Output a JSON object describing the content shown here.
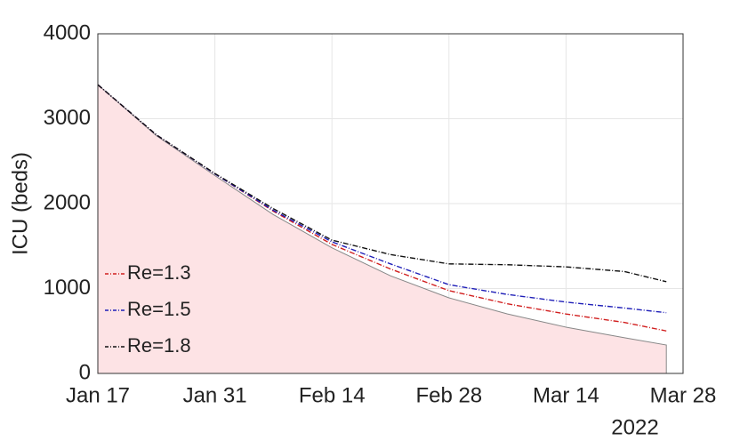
{
  "chart_data": {
    "type": "line",
    "y_label": "ICU (beds)",
    "x_year_label": "2022",
    "xlim": [
      "2022-01-17",
      "2022-03-28"
    ],
    "xticks": [
      {
        "value": "2022-01-17",
        "label": "Jan 17"
      },
      {
        "value": "2022-01-31",
        "label": "Jan 31"
      },
      {
        "value": "2022-02-14",
        "label": "Feb 14"
      },
      {
        "value": "2022-02-28",
        "label": "Feb 28"
      },
      {
        "value": "2022-03-14",
        "label": "Mar 14"
      },
      {
        "value": "2022-03-28",
        "label": "Mar 28"
      }
    ],
    "ylim": [
      0,
      4000
    ],
    "yticks": [
      0,
      1000,
      2000,
      3000,
      4000
    ],
    "grid": true,
    "legend": "lower left",
    "x": [
      "2022-01-17",
      "2022-01-24",
      "2022-01-31",
      "2022-02-07",
      "2022-02-14",
      "2022-02-21",
      "2022-02-28",
      "2022-03-07",
      "2022-03-14",
      "2022-03-21",
      "2022-03-26"
    ],
    "area": {
      "color": "#fde3e5",
      "edge_color": "#888888",
      "values": [
        3400,
        2800,
        2330,
        1870,
        1480,
        1150,
        890,
        700,
        545,
        420,
        335
      ]
    },
    "series": [
      {
        "name": "Re=1.3",
        "color": "#d11f1f",
        "values": [
          3400,
          2810,
          2350,
          1910,
          1520,
          1230,
          975,
          820,
          700,
          600,
          500
        ]
      },
      {
        "name": "Re=1.5",
        "color": "#1f1fb8",
        "values": [
          3400,
          2810,
          2350,
          1920,
          1550,
          1290,
          1045,
          930,
          840,
          770,
          715
        ]
      },
      {
        "name": "Re=1.8",
        "color": "#111111",
        "values": [
          3400,
          2810,
          2355,
          1940,
          1570,
          1400,
          1290,
          1280,
          1255,
          1200,
          1080
        ]
      }
    ]
  }
}
